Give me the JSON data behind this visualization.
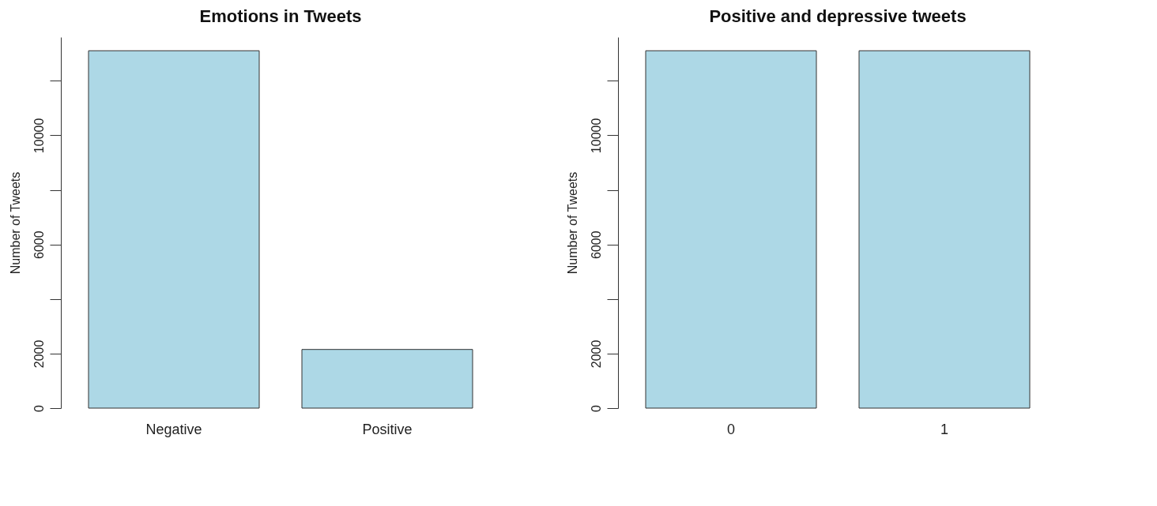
{
  "chart_data": [
    {
      "type": "bar",
      "title": "Emotions in Tweets",
      "ylabel": "Number of Tweets",
      "categories": [
        "Negative",
        "Positive"
      ],
      "values": [
        13100,
        2150
      ],
      "color": "#add8e6",
      "ylim": [
        0,
        13600
      ],
      "yticks": [
        0,
        2000,
        {
          "value": 4000,
          "label": null
        },
        6000,
        {
          "value": 8000,
          "label": null
        },
        10000,
        {
          "value": 12000,
          "label": null
        }
      ],
      "grid": false
    },
    {
      "type": "bar",
      "title": "Positive and depressive tweets",
      "ylabel": "Number of Tweets",
      "categories": [
        "0",
        "1"
      ],
      "values": [
        13100,
        13100
      ],
      "color": "#add8e6",
      "ylim": [
        0,
        13600
      ],
      "yticks": [
        0,
        2000,
        {
          "value": 4000,
          "label": null
        },
        6000,
        {
          "value": 8000,
          "label": null
        },
        10000,
        {
          "value": 12000,
          "label": null
        }
      ],
      "grid": false
    }
  ]
}
